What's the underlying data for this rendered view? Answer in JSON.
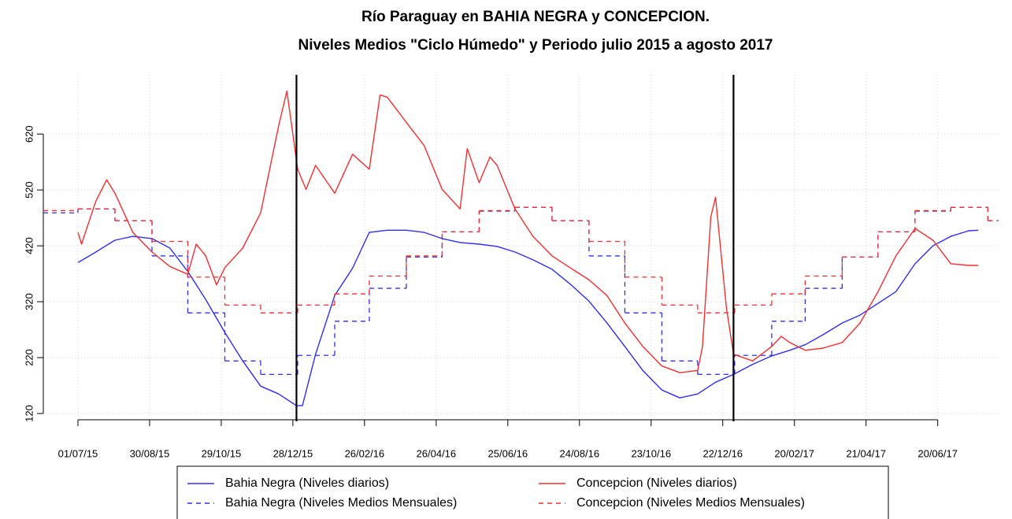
{
  "chart_data": {
    "type": "line",
    "title": "Río Paraguay en BAHIA NEGRA y CONCEPCION.",
    "subtitle": "Niveles Medios \"Ciclo Húmedo\" y Periodo julio 2015 a agosto 2017",
    "xlim": [
      "02/06/15",
      "10/08/17"
    ],
    "xticks": [
      "01/07/15",
      "30/08/15",
      "29/10/15",
      "28/12/15",
      "26/02/16",
      "26/04/16",
      "25/06/16",
      "24/08/16",
      "23/10/16",
      "22/12/16",
      "20/02/17",
      "21/04/17",
      "20/06/17"
    ],
    "ylim": [
      113,
      726
    ],
    "yticks": [
      120,
      220,
      320,
      420,
      520,
      620
    ],
    "grid": true,
    "vlines": [
      "31/12/15",
      "31/12/16"
    ],
    "vline_color": "#000000",
    "series": [
      {
        "name": "Bahia Negra (Niveles diarios)",
        "color": "#2e2ef5",
        "style": "solid",
        "x": [
          "01/07/15",
          "16/07/15",
          "01/08/15",
          "16/08/15",
          "01/09/15",
          "16/09/15",
          "01/10/15",
          "16/10/15",
          "01/11/15",
          "16/11/15",
          "01/12/15",
          "16/12/15",
          "31/12/15",
          "05/01/16",
          "16/01/16",
          "01/02/16",
          "16/02/16",
          "01/03/16",
          "16/03/16",
          "01/04/16",
          "16/04/16",
          "01/05/16",
          "16/05/16",
          "01/06/16",
          "16/06/16",
          "01/07/16",
          "16/07/16",
          "01/08/16",
          "16/08/16",
          "01/09/16",
          "16/09/16",
          "01/10/16",
          "16/10/16",
          "01/11/16",
          "16/11/16",
          "01/12/16",
          "16/12/16",
          "31/12/16",
          "16/01/17",
          "01/02/17",
          "16/02/17",
          "01/03/17",
          "16/03/17",
          "01/04/17",
          "16/04/17",
          "01/05/17",
          "16/05/17",
          "01/06/17",
          "16/06/17",
          "01/07/17",
          "16/07/17",
          "24/07/17"
        ],
        "values": [
          390,
          409,
          430,
          437,
          433,
          416,
          374,
          324,
          265,
          214,
          169,
          155,
          134,
          134,
          226,
          331,
          380,
          444,
          448,
          448,
          444,
          433,
          426,
          423,
          419,
          409,
          395,
          378,
          352,
          321,
          282,
          240,
          197,
          162,
          148,
          155,
          176,
          190,
          208,
          223,
          233,
          243,
          261,
          282,
          296,
          317,
          338,
          388,
          420,
          437,
          447,
          448
        ]
      },
      {
        "name": "Bahia Negra (Niveles Medios Mensuales)",
        "color": "#2e2ef5",
        "style": "dashed",
        "x": [
          "02/06/15",
          "01/07/15",
          "01/08/15",
          "01/09/15",
          "01/10/15",
          "01/11/15",
          "01/12/15",
          "01/01/16",
          "01/02/16",
          "01/03/16",
          "01/04/16",
          "01/05/16",
          "01/06/16",
          "01/07/16",
          "01/08/16",
          "01/09/16",
          "01/10/16",
          "01/11/16",
          "01/12/16",
          "01/01/17",
          "01/02/17",
          "01/03/17",
          "01/04/17",
          "01/05/17",
          "01/06/17",
          "01/07/17",
          "01/08/17"
        ],
        "values": [
          479,
          486,
          465,
          402,
          300,
          214,
          190,
          224,
          285,
          344,
          400,
          445,
          482,
          489,
          465,
          402,
          300,
          214,
          190,
          224,
          285,
          344,
          400,
          445,
          482,
          489,
          465
        ]
      },
      {
        "name": "Concepcion (Niveles diarios)",
        "color": "#f52e2e",
        "style": "solid",
        "x": [
          "01/07/15",
          "04/07/15",
          "16/07/15",
          "25/07/15",
          "01/08/15",
          "16/08/15",
          "01/09/15",
          "16/09/15",
          "01/10/15",
          "08/10/15",
          "16/10/15",
          "25/10/15",
          "01/11/15",
          "16/11/15",
          "01/12/15",
          "16/12/15",
          "23/12/15",
          "01/01/16",
          "08/01/16",
          "16/01/16",
          "01/02/16",
          "16/02/16",
          "01/03/16",
          "10/03/16",
          "16/03/16",
          "01/04/16",
          "16/04/16",
          "01/05/16",
          "16/05/16",
          "22/05/16",
          "01/06/16",
          "10/06/16",
          "16/06/16",
          "01/07/16",
          "16/07/16",
          "01/08/16",
          "16/08/16",
          "01/09/16",
          "16/09/16",
          "01/10/16",
          "16/10/16",
          "01/11/16",
          "16/11/16",
          "01/12/16",
          "05/12/16",
          "12/12/16",
          "16/12/16",
          "25/12/16",
          "31/12/16",
          "16/01/17",
          "01/02/17",
          "09/02/17",
          "16/02/17",
          "01/03/17",
          "16/03/17",
          "01/04/17",
          "16/04/17",
          "01/05/17",
          "16/05/17",
          "01/06/17",
          "16/06/17",
          "01/07/17",
          "16/07/17",
          "24/07/17"
        ],
        "values": [
          444,
          423,
          500,
          538,
          514,
          444,
          409,
          383,
          369,
          423,
          402,
          350,
          381,
          416,
          479,
          634,
          697,
          557,
          521,
          564,
          514,
          584,
          557,
          690,
          686,
          641,
          599,
          521,
          486,
          594,
          533,
          579,
          564,
          486,
          437,
          402,
          381,
          359,
          331,
          282,
          240,
          205,
          193,
          197,
          240,
          472,
          507,
          310,
          226,
          214,
          240,
          258,
          247,
          233,
          237,
          247,
          282,
          338,
          402,
          451,
          430,
          388,
          385,
          385
        ]
      },
      {
        "name": "Concepcion (Niveles Medios Mensuales)",
        "color": "#f52e2e",
        "style": "dashed",
        "x": [
          "02/06/15",
          "01/07/15",
          "01/08/15",
          "01/09/15",
          "01/10/15",
          "01/11/15",
          "01/12/15",
          "01/01/16",
          "01/02/16",
          "01/03/16",
          "01/04/16",
          "01/05/16",
          "01/06/16",
          "01/07/16",
          "01/08/16",
          "01/09/16",
          "01/10/16",
          "01/11/16",
          "01/12/16",
          "01/01/17",
          "01/02/17",
          "01/03/17",
          "01/04/17",
          "01/05/17",
          "01/06/17",
          "01/07/17",
          "01/08/17"
        ],
        "values": [
          483,
          486,
          465,
          428,
          364,
          314,
          300,
          314,
          334,
          366,
          402,
          445,
          483,
          489,
          465,
          428,
          364,
          314,
          300,
          314,
          334,
          366,
          400,
          445,
          483,
          489,
          465
        ]
      }
    ]
  }
}
